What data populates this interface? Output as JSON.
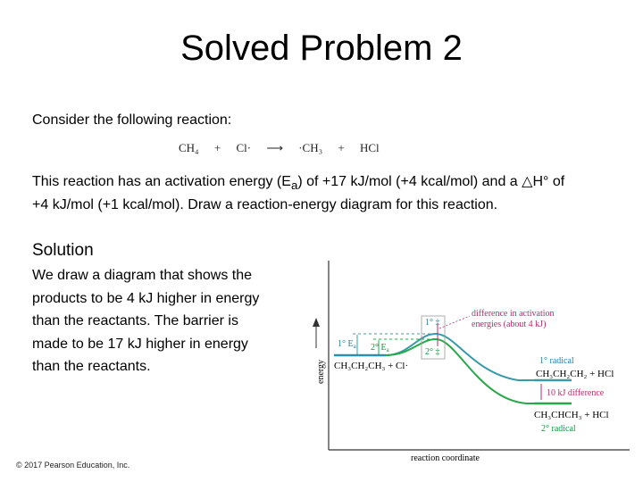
{
  "slide": {
    "title": "Solved Problem 2",
    "prompt": "Consider the following reaction:",
    "reaction": {
      "reactant1": "CH₄",
      "plus1": "+",
      "reactant2": "Cl·",
      "arrow": "⟶",
      "product1": "·CH₃",
      "plus2": "+",
      "product2": "HCl"
    },
    "problem_line1": "This reaction has an activation energy (E",
    "problem_sub": "a",
    "problem_line1b": ") of +17 kJ/mol (+4 kcal/mol) and a △H° of",
    "problem_line2": "+4 kJ/mol (+1 kcal/mol). Draw a reaction-energy diagram for this reaction.",
    "solution_heading": "Solution",
    "solution_lines": [
      "We draw a diagram that shows the",
      "products to be 4 kJ higher in energy",
      "than the reactants. The barrier is",
      "made to be 17 kJ higher in energy",
      "than the reactants."
    ],
    "copyright": "© 2017 Pearson Education, Inc."
  },
  "diagram": {
    "y_axis_label": "energy",
    "x_axis_label": "reaction coordinate",
    "reactant_label": "CH₃CH₂CH₃ + Cl·",
    "primary_ea_label": "1° E",
    "secondary_ea_label": "2° E",
    "ea_sub": "a",
    "ts1_label": "1° ‡",
    "ts2_label": "2° ‡",
    "difference_activation_line1": "difference in activation",
    "difference_activation_line2": "energies (about 4 kJ)",
    "primary_radical_label": "1° radical",
    "primary_product_label": "CH₃CH₂CH₂ + HCl",
    "difference_products": "10 kJ difference",
    "secondary_product_label": "CH₃CHCH₃ + HCl",
    "secondary_radical_label": "2° radical",
    "colors": {
      "primary_curve": "#3a9aa8",
      "secondary_curve": "#27a84a",
      "annotation": "#b0306a",
      "axis": "#333333"
    }
  }
}
